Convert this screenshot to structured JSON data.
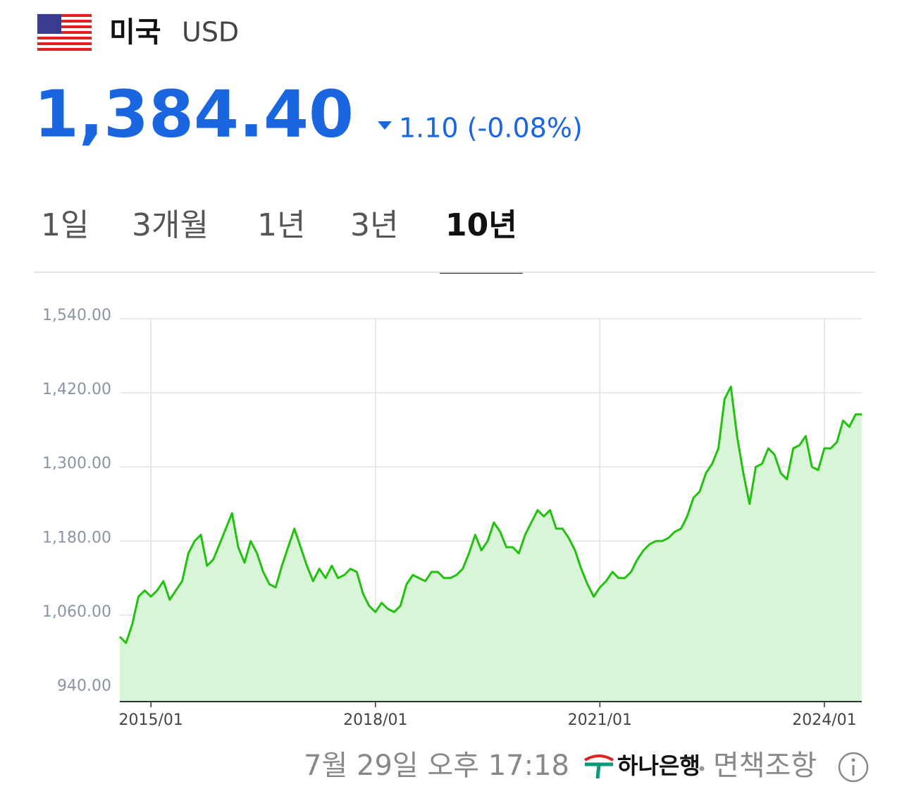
{
  "header": {
    "country": "미국",
    "currency": "USD",
    "rate": "1,384.40",
    "change": "1.10 (-0.08%)"
  },
  "tabs": [
    "1일",
    "3개월",
    "1년",
    "3년",
    "10년"
  ],
  "active_tab": 4,
  "chart_data": {
    "type": "area",
    "x": [
      "2014/08",
      "2014/09",
      "2014/10",
      "2014/11",
      "2014/12",
      "2015/01",
      "2015/02",
      "2015/03",
      "2015/04",
      "2015/05",
      "2015/06",
      "2015/07",
      "2015/08",
      "2015/09",
      "2015/10",
      "2015/11",
      "2015/12",
      "2016/01",
      "2016/02",
      "2016/03",
      "2016/04",
      "2016/05",
      "2016/06",
      "2016/07",
      "2016/08",
      "2016/09",
      "2016/10",
      "2016/11",
      "2016/12",
      "2017/01",
      "2017/02",
      "2017/03",
      "2017/04",
      "2017/05",
      "2017/06",
      "2017/07",
      "2017/08",
      "2017/09",
      "2017/10",
      "2017/11",
      "2017/12",
      "2018/01",
      "2018/02",
      "2018/03",
      "2018/04",
      "2018/05",
      "2018/06",
      "2018/07",
      "2018/08",
      "2018/09",
      "2018/10",
      "2018/11",
      "2018/12",
      "2019/01",
      "2019/02",
      "2019/03",
      "2019/04",
      "2019/05",
      "2019/06",
      "2019/07",
      "2019/08",
      "2019/09",
      "2019/10",
      "2019/11",
      "2019/12",
      "2020/01",
      "2020/02",
      "2020/03",
      "2020/04",
      "2020/05",
      "2020/06",
      "2020/07",
      "2020/08",
      "2020/09",
      "2020/10",
      "2020/11",
      "2020/12",
      "2021/01",
      "2021/02",
      "2021/03",
      "2021/04",
      "2021/05",
      "2021/06",
      "2021/07",
      "2021/08",
      "2021/09",
      "2021/10",
      "2021/11",
      "2021/12",
      "2022/01",
      "2022/02",
      "2022/03",
      "2022/04",
      "2022/05",
      "2022/06",
      "2022/07",
      "2022/08",
      "2022/09",
      "2022/10",
      "2022/11",
      "2022/12",
      "2023/01",
      "2023/02",
      "2023/03",
      "2023/04",
      "2023/05",
      "2023/06",
      "2023/07",
      "2023/08",
      "2023/09",
      "2023/10",
      "2023/11",
      "2023/12",
      "2024/01",
      "2024/02",
      "2024/03",
      "2024/04",
      "2024/05",
      "2024/06",
      "2024/07"
    ],
    "values": [
      1025,
      1015,
      1045,
      1090,
      1100,
      1090,
      1100,
      1115,
      1085,
      1100,
      1115,
      1160,
      1180,
      1190,
      1140,
      1150,
      1175,
      1200,
      1225,
      1170,
      1145,
      1180,
      1160,
      1130,
      1110,
      1105,
      1140,
      1170,
      1200,
      1170,
      1140,
      1115,
      1135,
      1120,
      1140,
      1120,
      1125,
      1135,
      1130,
      1095,
      1075,
      1065,
      1080,
      1070,
      1065,
      1075,
      1110,
      1125,
      1120,
      1115,
      1130,
      1130,
      1120,
      1120,
      1125,
      1135,
      1160,
      1190,
      1165,
      1180,
      1210,
      1195,
      1170,
      1170,
      1160,
      1190,
      1210,
      1230,
      1220,
      1230,
      1200,
      1200,
      1185,
      1165,
      1135,
      1110,
      1090,
      1105,
      1115,
      1130,
      1120,
      1120,
      1130,
      1150,
      1165,
      1175,
      1180,
      1180,
      1185,
      1195,
      1200,
      1220,
      1250,
      1260,
      1290,
      1305,
      1330,
      1410,
      1430,
      1350,
      1290,
      1240,
      1300,
      1305,
      1330,
      1320,
      1290,
      1280,
      1330,
      1335,
      1350,
      1300,
      1295,
      1330,
      1330,
      1340,
      1375,
      1365,
      1385,
      1385
    ],
    "color": "#22c00f",
    "fill": "#d9f5d7",
    "xlim": [
      "2014/08",
      "2024/07"
    ],
    "xticks": [
      "2015/01",
      "2018/01",
      "2021/01",
      "2024/01"
    ],
    "ylim": [
      920,
      1540
    ],
    "yticks": [
      {
        "value": 940,
        "label": "940.00"
      },
      {
        "value": 1060,
        "label": "1,060.00"
      },
      {
        "value": 1180,
        "label": "1,180.00"
      },
      {
        "value": 1300,
        "label": "1,300.00"
      },
      {
        "value": 1420,
        "label": "1,420.00"
      },
      {
        "value": 1540,
        "label": "1,540.00"
      }
    ],
    "grid": true
  },
  "footer": {
    "timestamp": "7월 29일 오후 17:18",
    "bank": "하나은행",
    "disclaimer": "면책조항"
  }
}
